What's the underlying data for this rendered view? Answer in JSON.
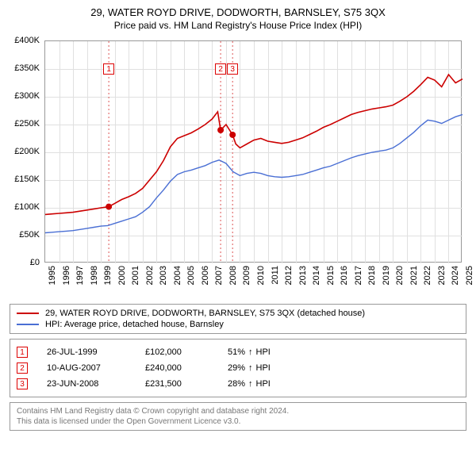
{
  "title": "29, WATER ROYD DRIVE, DODWORTH, BARNSLEY, S75 3QX",
  "subtitle": "Price paid vs. HM Land Registry's House Price Index (HPI)",
  "chart": {
    "type": "line",
    "background_color": "#ffffff",
    "grid_color": "#e0e0e0",
    "x": {
      "min": 1995,
      "max": 2025,
      "ticks": [
        1995,
        1996,
        1997,
        1998,
        1999,
        2000,
        2001,
        2002,
        2003,
        2004,
        2005,
        2006,
        2007,
        2008,
        2009,
        2010,
        2011,
        2012,
        2013,
        2014,
        2015,
        2016,
        2017,
        2018,
        2019,
        2020,
        2021,
        2022,
        2023,
        2024,
        2025
      ]
    },
    "y": {
      "min": 0,
      "max": 400000,
      "tick_step": 50000,
      "tick_labels": [
        "£0",
        "£50K",
        "£100K",
        "£150K",
        "£200K",
        "£250K",
        "£300K",
        "£350K",
        "£400K"
      ]
    },
    "series": [
      {
        "name": "property",
        "color": "#cc0000",
        "line_width": 1.6,
        "points": [
          [
            1995.0,
            88000
          ],
          [
            1995.5,
            89000
          ],
          [
            1996.0,
            90000
          ],
          [
            1996.5,
            91000
          ],
          [
            1997.0,
            92000
          ],
          [
            1997.5,
            94000
          ],
          [
            1998.0,
            96000
          ],
          [
            1998.5,
            98000
          ],
          [
            1999.0,
            100000
          ],
          [
            1999.57,
            102000
          ],
          [
            2000.0,
            108000
          ],
          [
            2000.5,
            115000
          ],
          [
            2001.0,
            120000
          ],
          [
            2001.5,
            126000
          ],
          [
            2002.0,
            135000
          ],
          [
            2002.5,
            150000
          ],
          [
            2003.0,
            165000
          ],
          [
            2003.5,
            185000
          ],
          [
            2004.0,
            210000
          ],
          [
            2004.5,
            225000
          ],
          [
            2005.0,
            230000
          ],
          [
            2005.5,
            235000
          ],
          [
            2006.0,
            242000
          ],
          [
            2006.5,
            250000
          ],
          [
            2007.0,
            260000
          ],
          [
            2007.4,
            273000
          ],
          [
            2007.61,
            240000
          ],
          [
            2008.0,
            250000
          ],
          [
            2008.47,
            231500
          ],
          [
            2008.7,
            215000
          ],
          [
            2009.0,
            208000
          ],
          [
            2009.5,
            215000
          ],
          [
            2010.0,
            222000
          ],
          [
            2010.5,
            225000
          ],
          [
            2011.0,
            220000
          ],
          [
            2011.5,
            218000
          ],
          [
            2012.0,
            216000
          ],
          [
            2012.5,
            218000
          ],
          [
            2013.0,
            222000
          ],
          [
            2013.5,
            226000
          ],
          [
            2014.0,
            232000
          ],
          [
            2014.5,
            238000
          ],
          [
            2015.0,
            245000
          ],
          [
            2015.5,
            250000
          ],
          [
            2016.0,
            256000
          ],
          [
            2016.5,
            262000
          ],
          [
            2017.0,
            268000
          ],
          [
            2017.5,
            272000
          ],
          [
            2018.0,
            275000
          ],
          [
            2018.5,
            278000
          ],
          [
            2019.0,
            280000
          ],
          [
            2019.5,
            282000
          ],
          [
            2020.0,
            285000
          ],
          [
            2020.5,
            292000
          ],
          [
            2021.0,
            300000
          ],
          [
            2021.5,
            310000
          ],
          [
            2022.0,
            322000
          ],
          [
            2022.5,
            335000
          ],
          [
            2023.0,
            330000
          ],
          [
            2023.5,
            318000
          ],
          [
            2024.0,
            340000
          ],
          [
            2024.5,
            325000
          ],
          [
            2025.0,
            332000
          ]
        ]
      },
      {
        "name": "hpi",
        "color": "#4a6fd4",
        "line_width": 1.4,
        "points": [
          [
            1995.0,
            55000
          ],
          [
            1995.5,
            56000
          ],
          [
            1996.0,
            57000
          ],
          [
            1996.5,
            58000
          ],
          [
            1997.0,
            59000
          ],
          [
            1997.5,
            61000
          ],
          [
            1998.0,
            63000
          ],
          [
            1998.5,
            65000
          ],
          [
            1999.0,
            67000
          ],
          [
            1999.5,
            68000
          ],
          [
            2000.0,
            72000
          ],
          [
            2000.5,
            76000
          ],
          [
            2001.0,
            80000
          ],
          [
            2001.5,
            84000
          ],
          [
            2002.0,
            92000
          ],
          [
            2002.5,
            102000
          ],
          [
            2003.0,
            118000
          ],
          [
            2003.5,
            132000
          ],
          [
            2004.0,
            148000
          ],
          [
            2004.5,
            160000
          ],
          [
            2005.0,
            165000
          ],
          [
            2005.5,
            168000
          ],
          [
            2006.0,
            172000
          ],
          [
            2006.5,
            176000
          ],
          [
            2007.0,
            182000
          ],
          [
            2007.5,
            186000
          ],
          [
            2008.0,
            180000
          ],
          [
            2008.5,
            165000
          ],
          [
            2009.0,
            158000
          ],
          [
            2009.5,
            162000
          ],
          [
            2010.0,
            164000
          ],
          [
            2010.5,
            162000
          ],
          [
            2011.0,
            158000
          ],
          [
            2011.5,
            156000
          ],
          [
            2012.0,
            155000
          ],
          [
            2012.5,
            156000
          ],
          [
            2013.0,
            158000
          ],
          [
            2013.5,
            160000
          ],
          [
            2014.0,
            164000
          ],
          [
            2014.5,
            168000
          ],
          [
            2015.0,
            172000
          ],
          [
            2015.5,
            175000
          ],
          [
            2016.0,
            180000
          ],
          [
            2016.5,
            185000
          ],
          [
            2017.0,
            190000
          ],
          [
            2017.5,
            194000
          ],
          [
            2018.0,
            197000
          ],
          [
            2018.5,
            200000
          ],
          [
            2019.0,
            202000
          ],
          [
            2019.5,
            204000
          ],
          [
            2020.0,
            208000
          ],
          [
            2020.5,
            216000
          ],
          [
            2021.0,
            226000
          ],
          [
            2021.5,
            236000
          ],
          [
            2022.0,
            248000
          ],
          [
            2022.5,
            258000
          ],
          [
            2023.0,
            256000
          ],
          [
            2023.5,
            252000
          ],
          [
            2024.0,
            258000
          ],
          [
            2024.5,
            264000
          ],
          [
            2025.0,
            268000
          ]
        ]
      }
    ],
    "sale_markers": {
      "color": "#cc0000",
      "radius": 4,
      "points": [
        [
          1999.57,
          102000
        ],
        [
          2007.61,
          240000
        ],
        [
          2008.47,
          231500
        ]
      ]
    },
    "event_lines": {
      "color": "#dd5555",
      "dash": "2,3",
      "x": [
        1999.57,
        2007.61,
        2008.47
      ]
    },
    "event_boxes": {
      "border": "#d00",
      "text_color": "#d00",
      "labels": [
        "1",
        "2",
        "3"
      ],
      "y": 360000
    }
  },
  "legend": {
    "items": [
      {
        "color": "#cc0000",
        "label": "29, WATER ROYD DRIVE, DODWORTH, BARNSLEY, S75 3QX (detached house)"
      },
      {
        "color": "#4a6fd4",
        "label": "HPI: Average price, detached house, Barnsley"
      }
    ]
  },
  "events": [
    {
      "n": "1",
      "date": "26-JUL-1999",
      "price": "£102,000",
      "pct": "51%",
      "arrow": "↑",
      "suffix": "HPI"
    },
    {
      "n": "2",
      "date": "10-AUG-2007",
      "price": "£240,000",
      "pct": "29%",
      "arrow": "↑",
      "suffix": "HPI"
    },
    {
      "n": "3",
      "date": "23-JUN-2008",
      "price": "£231,500",
      "pct": "28%",
      "arrow": "↑",
      "suffix": "HPI"
    }
  ],
  "footer": {
    "line1": "Contains HM Land Registry data © Crown copyright and database right 2024.",
    "line2": "This data is licensed under the Open Government Licence v3.0."
  }
}
